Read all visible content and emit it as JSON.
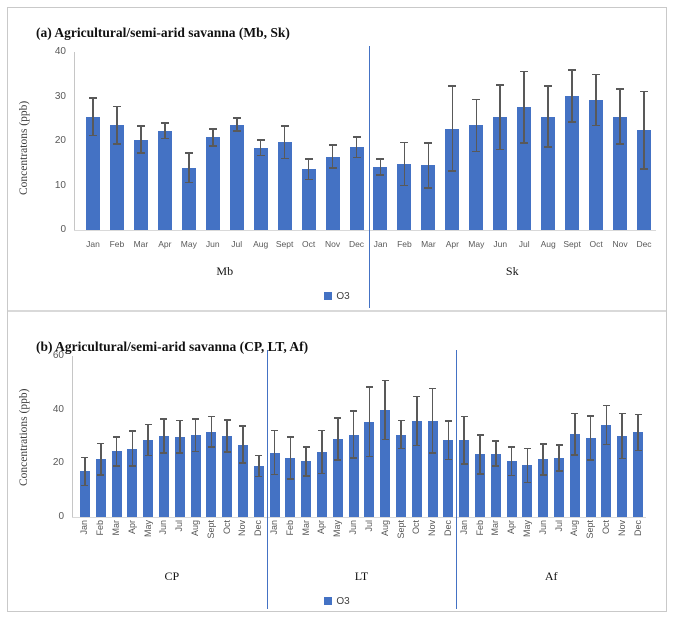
{
  "figure": {
    "colors": {
      "bar": "#4472C4",
      "error_bar": "#595959",
      "divider_line": "#4472C4",
      "axis_line": "#C6C6C6",
      "tick_text": "#595959",
      "separator_line": "#D9D9D9",
      "border": "#C9C9C9"
    }
  },
  "chart_data": [
    {
      "type": "bar",
      "title": "(a) Agricultural/semi-arid savanna (Mb, Sk)",
      "ylabel": "Concentratons (ppb)",
      "xlabel": "",
      "ylim": [
        0,
        40
      ],
      "yticks": [
        0,
        10,
        20,
        30,
        40
      ],
      "grid": false,
      "legend_position": "bottom-center",
      "series_label": "O3",
      "categories": [
        "Jan",
        "Feb",
        "Mar",
        "Apr",
        "May",
        "Jun",
        "Jul",
        "Aug",
        "Sept",
        "Oct",
        "Nov",
        "Dec"
      ],
      "groups": [
        {
          "name": "Mb",
          "values": [
            25.5,
            23.5,
            20.3,
            22.3,
            14.0,
            20.8,
            23.7,
            18.5,
            19.7,
            13.7,
            16.5,
            18.6
          ],
          "errors": [
            4.4,
            4.4,
            3.2,
            1.9,
            3.5,
            2.1,
            1.6,
            1.9,
            3.8,
            2.5,
            2.8,
            2.5
          ]
        },
        {
          "name": "Sk",
          "values": [
            14.2,
            14.8,
            14.5,
            22.8,
            23.5,
            25.3,
            27.6,
            25.5,
            30.1,
            29.2,
            25.5,
            22.4
          ],
          "errors": [
            2.0,
            5.0,
            5.2,
            9.7,
            6.0,
            7.4,
            8.2,
            7.0,
            6.0,
            5.9,
            6.4,
            8.9
          ]
        }
      ]
    },
    {
      "type": "bar",
      "title": "(b) Agricultural/semi-arid savanna (CP, LT, Af)",
      "ylabel": "Concentrations (ppb)",
      "xlabel": "",
      "ylim": [
        0,
        60
      ],
      "yticks": [
        0,
        20,
        40,
        60
      ],
      "grid": false,
      "legend_position": "bottom-center",
      "series_label": "O3",
      "categories": [
        "Jan",
        "Feb",
        "Mar",
        "Apr",
        "May",
        "Jun",
        "Jul",
        "Aug",
        "Sept",
        "Oct",
        "Nov",
        "Dec"
      ],
      "groups": [
        {
          "name": "CP",
          "values": [
            17.0,
            21.5,
            24.5,
            25.5,
            28.7,
            30.2,
            29.9,
            30.5,
            31.7,
            30.2,
            27.0,
            19.0
          ],
          "errors": [
            5.5,
            6.2,
            5.7,
            6.9,
            6.1,
            6.6,
            6.3,
            6.4,
            6.0,
            6.2,
            7.1,
            4.2
          ]
        },
        {
          "name": "LT",
          "values": [
            24.0,
            22.0,
            20.7,
            24.2,
            29.1,
            30.7,
            35.5,
            39.9,
            30.7,
            35.8,
            35.9,
            28.6
          ],
          "errors": [
            8.5,
            8.1,
            5.7,
            8.3,
            8.2,
            9.1,
            13.2,
            11.3,
            5.5,
            9.4,
            12.3,
            7.5
          ]
        },
        {
          "name": "Af",
          "values": [
            28.6,
            23.3,
            23.6,
            20.7,
            19.2,
            21.5,
            22.0,
            30.9,
            29.5,
            34.3,
            30.2,
            31.5
          ],
          "errors": [
            9.2,
            7.6,
            5.0,
            5.6,
            6.6,
            6.1,
            5.1,
            8.0,
            8.5,
            7.6,
            8.7,
            7.0
          ]
        }
      ]
    }
  ]
}
